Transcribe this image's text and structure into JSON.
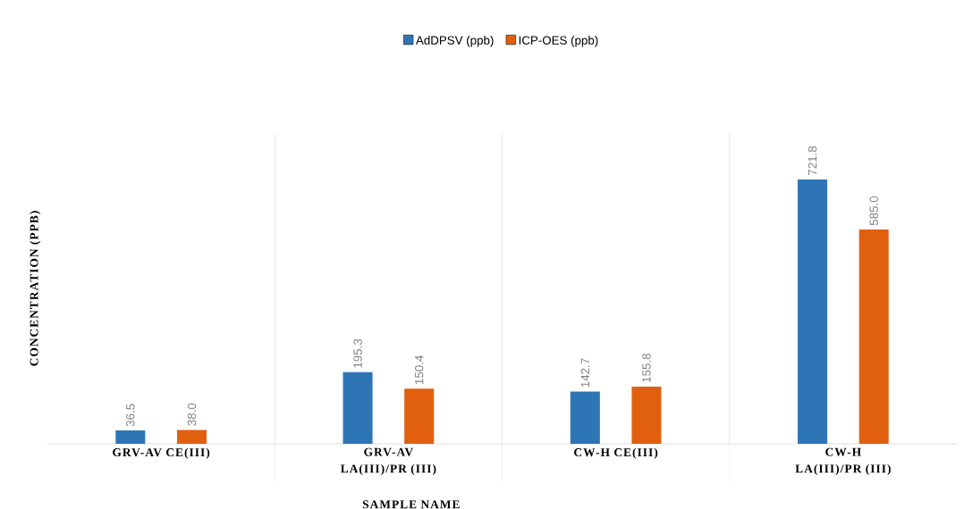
{
  "chart_data": {
    "type": "bar",
    "xlabel": "SAMPLE NAME",
    "ylabel": "CONCENTRATION (PPB)",
    "categories": [
      "GRV-AV CE(III)",
      "GRV-AV LA(III)/PR (III)",
      "CW-H CE(III)",
      "CW-H LA(III)/PR (III)"
    ],
    "series": [
      {
        "name": "AdDPSV (ppb)",
        "color": "#2e75b6",
        "values": [
          36.5,
          195.3,
          142.7,
          721.8
        ],
        "value_labels": [
          "36.5",
          "195.3",
          "142.7",
          "721.8"
        ]
      },
      {
        "name": "ICP-OES (ppb)",
        "color": "#e0600f",
        "values": [
          38.0,
          150.4,
          155.8,
          585.0
        ],
        "value_labels": [
          "38.0",
          "150.4",
          "155.8",
          "585.0"
        ]
      }
    ],
    "legend": "top",
    "grid": "x"
  }
}
